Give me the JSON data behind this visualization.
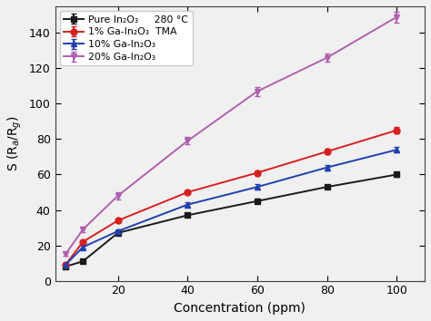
{
  "x": [
    5,
    10,
    20,
    40,
    60,
    80,
    100
  ],
  "pure_in2o3": [
    8,
    11,
    27,
    37,
    45,
    53,
    60
  ],
  "1pct_ga_in2o3": [
    9,
    22,
    34,
    50,
    61,
    73,
    85
  ],
  "10pct_ga_in2o3": [
    9,
    19,
    28,
    43,
    53,
    64,
    74
  ],
  "20pct_ga_in2o3": [
    15,
    29,
    48,
    79,
    107,
    126,
    149
  ],
  "colors": {
    "pure": "#1a1a1a",
    "1pct": "#d62020",
    "10pct": "#2040b0",
    "20pct": "#b060b0"
  },
  "legend_labels": [
    "Pure In₂O₃     280 °C",
    "1% Ga-In₂O₃  TMA",
    "10% Ga-In₂O₃",
    "20% Ga-In₂O₃"
  ],
  "xlabel": "Concentration (ppm)",
  "ylabel": "S (R$_a$/R$_g$)",
  "xlim": [
    2,
    108
  ],
  "ylim": [
    0,
    155
  ],
  "xticks": [
    20,
    40,
    60,
    80,
    100
  ],
  "yticks": [
    0,
    20,
    40,
    60,
    80,
    100,
    120,
    140
  ],
  "marker_size": 5,
  "linewidth": 1.4
}
